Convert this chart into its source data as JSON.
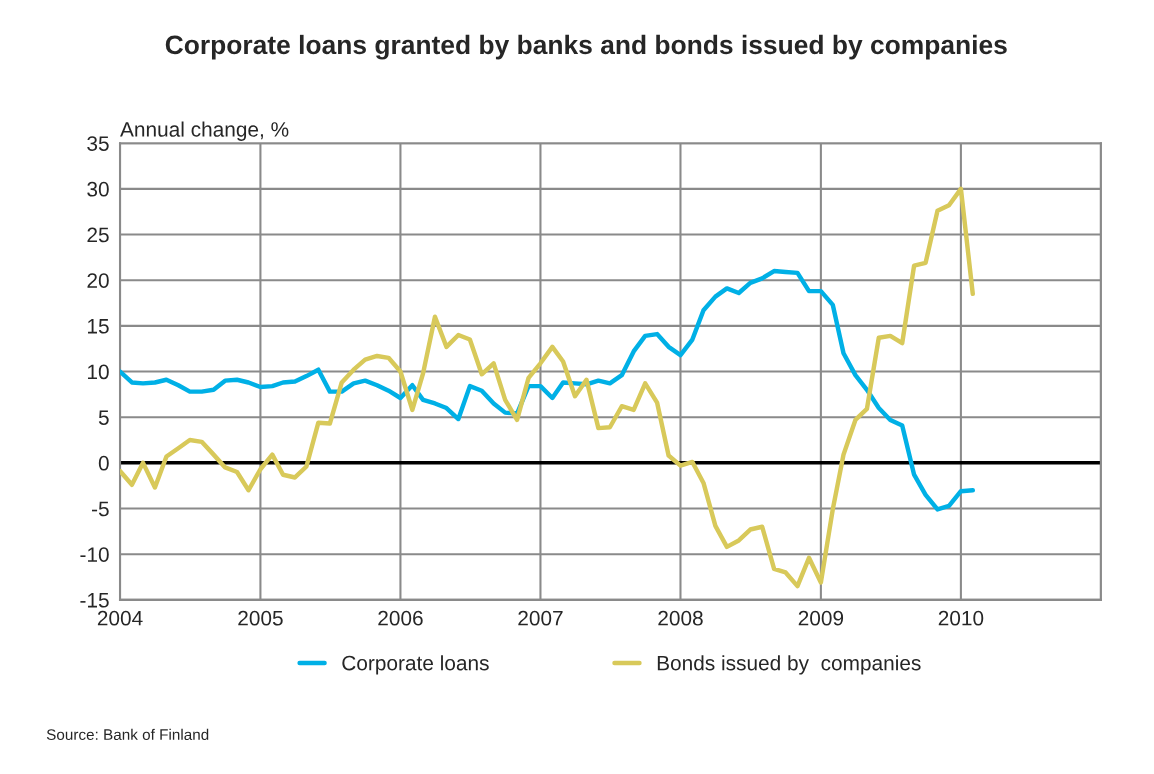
{
  "chart_data": {
    "type": "line",
    "title": "Corporate loans granted by banks and bonds issued by companies",
    "ylabel": "Annual change, %",
    "x": [
      "2004-01",
      "2004-02",
      "2004-03",
      "2004-04",
      "2004-05",
      "2004-06",
      "2004-07",
      "2004-08",
      "2004-09",
      "2004-10",
      "2004-11",
      "2004-12",
      "2005-01",
      "2005-02",
      "2005-03",
      "2005-04",
      "2005-05",
      "2005-06",
      "2005-07",
      "2005-08",
      "2005-09",
      "2005-10",
      "2005-11",
      "2005-12",
      "2006-01",
      "2006-02",
      "2006-03",
      "2006-04",
      "2006-05",
      "2006-06",
      "2006-07",
      "2006-08",
      "2006-09",
      "2006-10",
      "2006-11",
      "2006-12",
      "2007-01",
      "2007-02",
      "2007-03",
      "2007-04",
      "2007-05",
      "2007-06",
      "2007-07",
      "2007-08",
      "2007-09",
      "2007-10",
      "2007-11",
      "2007-12",
      "2008-01",
      "2008-02",
      "2008-03",
      "2008-04",
      "2008-05",
      "2008-06",
      "2008-07",
      "2008-08",
      "2008-09",
      "2008-10",
      "2008-11",
      "2008-12",
      "2009-01",
      "2009-02",
      "2009-03",
      "2009-04",
      "2009-05",
      "2009-06",
      "2009-07",
      "2009-08",
      "2009-09",
      "2009-10",
      "2009-11",
      "2009-12",
      "2010-01",
      "2010-02"
    ],
    "series": [
      {
        "name": "Corporate loans",
        "color": "#00b0e6",
        "values": [
          10,
          8.8,
          8.7,
          8.8,
          9.1,
          8.5,
          7.8,
          7.8,
          8.0,
          9.0,
          9.1,
          8.8,
          8.3,
          8.4,
          8.8,
          8.9,
          9.5,
          10.2,
          7.8,
          7.8,
          8.7,
          9.0,
          8.5,
          7.9,
          7.1,
          8.5,
          6.9,
          6.5,
          6.0,
          4.8,
          8.4,
          7.9,
          6.5,
          5.5,
          5.4,
          8.4,
          8.4,
          7.1,
          8.8,
          8.7,
          8.6,
          9.0,
          8.7,
          9.6,
          12.2,
          13.9,
          14.1,
          12.7,
          11.8,
          13.5,
          16.7,
          18.2,
          19.1,
          18.6,
          19.7,
          20.2,
          21.0,
          20.9,
          20.8,
          18.8,
          18.8,
          17.3,
          12.0,
          9.6,
          8.0,
          6.0,
          4.7,
          4.1,
          -1.3,
          -3.5,
          -5.1,
          -4.7,
          -3.1,
          -3.0
        ]
      },
      {
        "name": "Bonds issued by  companies",
        "color": "#d8c95a",
        "values": [
          -0.9,
          -2.4,
          0,
          -2.7,
          0.7,
          1.6,
          2.5,
          2.3,
          0.9,
          -0.5,
          -1.0,
          -3.0,
          -0.7,
          0.9,
          -1.3,
          -1.6,
          -0.4,
          4.4,
          4.3,
          8.8,
          10.2,
          11.3,
          11.7,
          11.5,
          10.0,
          5.8,
          9.8,
          16.0,
          12.7,
          14.0,
          13.5,
          9.7,
          10.9,
          6.9,
          4.7,
          9.3,
          10.9,
          12.7,
          11.1,
          7.3,
          9.1,
          3.8,
          3.9,
          6.2,
          5.8,
          8.7,
          6.6,
          0.8,
          -0.3,
          0.1,
          -2.2,
          -6.9,
          -9.2,
          -8.5,
          -7.3,
          -7.0,
          -11.6,
          -12.0,
          -13.5,
          -10.4,
          -13.1,
          -5.1,
          0.9,
          4.7,
          5.9,
          13.7,
          13.9,
          13.1,
          21.6,
          21.9,
          27.6,
          28.2,
          30.0,
          18.5
        ]
      }
    ],
    "xlim": [
      "2004",
      "2011"
    ],
    "xticks": [
      "2004",
      "2005",
      "2006",
      "2007",
      "2008",
      "2009",
      "2010",
      {
        "value": "2011",
        "label": null
      }
    ],
    "ylim": [
      -15,
      35
    ],
    "yticks": [
      -15,
      -10,
      -5,
      0,
      5,
      10,
      15,
      20,
      25,
      30,
      35
    ],
    "ref_lines": [
      {
        "axis": "y",
        "value": 0,
        "color": "#000000"
      }
    ],
    "grid": true,
    "legend": "bottom",
    "marker": "none",
    "line_style": "solid",
    "annotations": [
      "Source: Bank of Finland"
    ]
  }
}
